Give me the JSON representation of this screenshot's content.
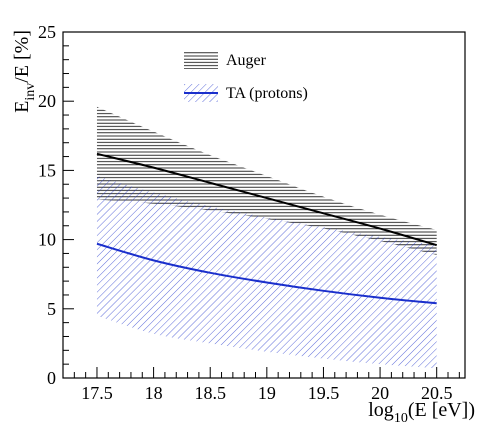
{
  "chart_data": {
    "type": "line",
    "title": "",
    "xlabel": {
      "prefix": "log",
      "sub": "10",
      "suffix": "(E [eV])"
    },
    "ylabel": {
      "prefix": "E",
      "sub": "inv",
      "suffix": "/E [%]"
    },
    "xlim": [
      17.2,
      20.75
    ],
    "ylim": [
      0,
      25
    ],
    "xticks": [
      {
        "value": 17.5,
        "label": "17.5"
      },
      {
        "value": 18,
        "label": "18"
      },
      {
        "value": 18.5,
        "label": "18.5"
      },
      {
        "value": 19,
        "label": "19"
      },
      {
        "value": 19.5,
        "label": "19.5"
      },
      {
        "value": 20,
        "label": "20"
      },
      {
        "value": 20.5,
        "label": "20.5"
      }
    ],
    "yticks": [
      {
        "value": 0,
        "label": "0"
      },
      {
        "value": 5,
        "label": "5"
      },
      {
        "value": 10,
        "label": "10"
      },
      {
        "value": 15,
        "label": "15"
      },
      {
        "value": 20,
        "label": "20"
      },
      {
        "value": 25,
        "label": "25"
      }
    ],
    "legend_position": "top-center",
    "series": [
      {
        "name": "Auger",
        "color": "#000000",
        "band_style": "horizontal-hatch",
        "x": [
          17.5,
          18.0,
          18.5,
          19.0,
          19.5,
          20.0,
          20.5
        ],
        "y": [
          16.2,
          15.2,
          14.1,
          13.0,
          11.9,
          10.8,
          9.6
        ],
        "upper": [
          19.6,
          17.8,
          16.1,
          14.6,
          13.1,
          11.8,
          10.7
        ],
        "lower": [
          12.9,
          12.6,
          12.1,
          11.5,
          10.8,
          9.9,
          8.9
        ]
      },
      {
        "name": "TA (protons)",
        "color": "#1a2fcc",
        "band_style": "diagonal-hatch",
        "x": [
          17.5,
          18.0,
          18.5,
          19.0,
          19.5,
          20.0,
          20.5
        ],
        "y": [
          9.7,
          8.5,
          7.6,
          6.9,
          6.3,
          5.8,
          5.4
        ],
        "upper": [
          14.6,
          13.4,
          12.4,
          11.6,
          10.9,
          10.2,
          9.6
        ],
        "lower": [
          4.5,
          3.2,
          2.5,
          1.9,
          1.4,
          1.0,
          0.7
        ]
      }
    ]
  }
}
